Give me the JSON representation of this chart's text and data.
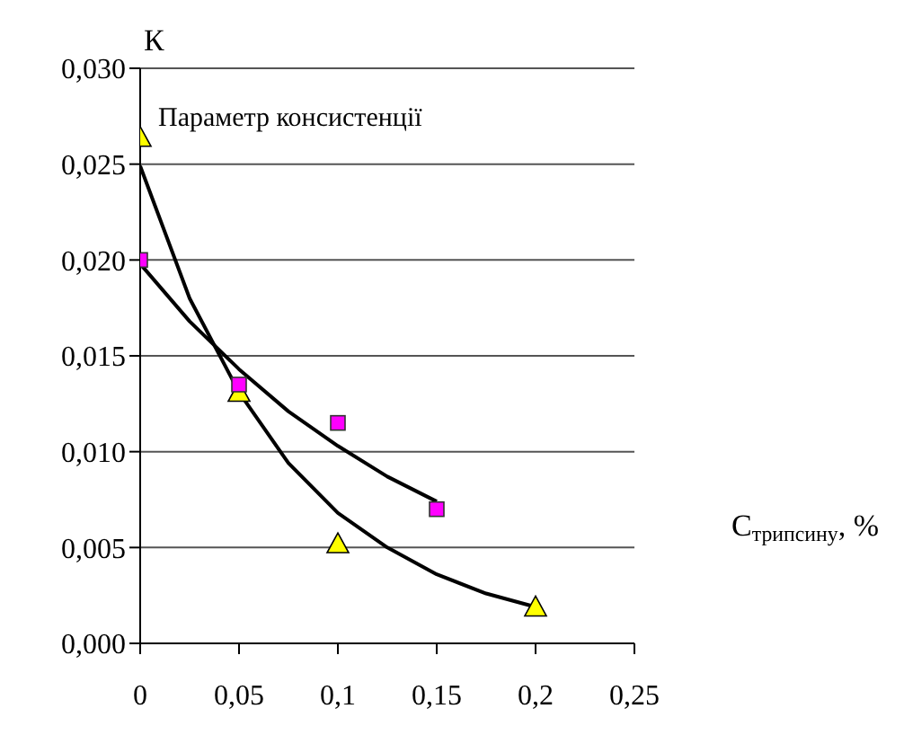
{
  "chart_data": {
    "type": "scatter",
    "xlabel": "C$_{трипсину}$, %",
    "ylabel": "К",
    "annotations": [
      "Параметр консистенції"
    ],
    "xlim": [
      0,
      0.25
    ],
    "ylim": [
      0,
      0.03
    ],
    "xticks": [
      0,
      {
        "value": 0.05,
        "label": "0,05"
      },
      {
        "value": 0.1,
        "label": "0,1"
      },
      {
        "value": 0.15,
        "label": "0,15"
      },
      {
        "value": 0.2,
        "label": "0,2"
      },
      {
        "value": 0.25,
        "label": "0,25"
      }
    ],
    "yticks": [
      {
        "value": 0,
        "label": "0,000"
      },
      {
        "value": 0.005,
        "label": "0,005"
      },
      {
        "value": 0.01,
        "label": "0,010"
      },
      {
        "value": 0.015,
        "label": "0,015"
      },
      {
        "value": 0.02,
        "label": "0,020"
      },
      {
        "value": 0.025,
        "label": "0,025"
      },
      {
        "value": 0.03,
        "label": "0,030"
      }
    ],
    "grid": "y",
    "legend": false,
    "series": [
      {
        "marker": "triangle",
        "color": "#ffff00",
        "x": [
          0,
          0.05,
          0.1,
          0.2
        ],
        "values": [
          0.0264,
          0.0131,
          0.0052,
          0.0019
        ]
      },
      {
        "marker": "square",
        "color": "#ff00ff",
        "x": [
          0,
          0.05,
          0.1,
          0.15
        ],
        "values": [
          0.02,
          0.0135,
          0.0115,
          0.007
        ]
      },
      {
        "type": "line",
        "marker": "none",
        "color": "#000000",
        "x": [
          0,
          0.025,
          0.05,
          0.075,
          0.1,
          0.125,
          0.15,
          0.175,
          0.2
        ],
        "values": [
          0.0249,
          0.018,
          0.0131,
          0.0094,
          0.0068,
          0.005,
          0.0036,
          0.0026,
          0.0019
        ]
      },
      {
        "type": "line",
        "marker": "none",
        "color": "#000000",
        "x": [
          0,
          0.025,
          0.05,
          0.075,
          0.1,
          0.125,
          0.15
        ],
        "values": [
          0.0198,
          0.0168,
          0.0143,
          0.0121,
          0.0103,
          0.0087,
          0.0074
        ]
      }
    ]
  }
}
